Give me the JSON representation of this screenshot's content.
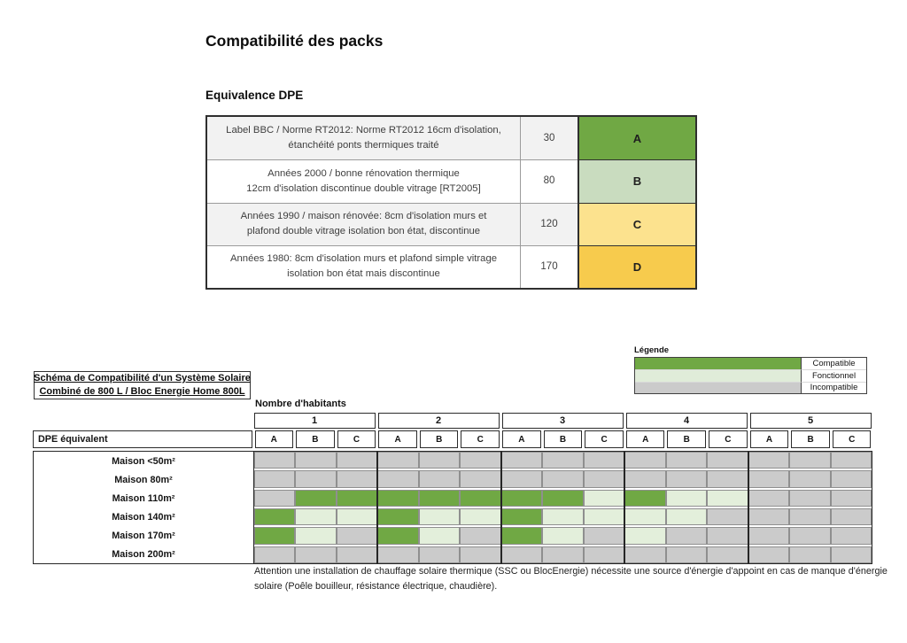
{
  "page": {
    "title": "Compatibilité des packs"
  },
  "equivalence": {
    "heading": "Equivalence DPE",
    "rows": [
      {
        "description_line1": "Label BBC / Norme RT2012: Norme RT2012 16cm d'isolation,",
        "description_line2": "étanchéité ponts thermiques traité",
        "value": "30",
        "grade": "A",
        "color": "#70A844"
      },
      {
        "description_line1": "Années 2000 / bonne rénovation thermique",
        "description_line2": "12cm d'isolation discontinue double vitrage [RT2005]",
        "value": "80",
        "grade": "B",
        "color": "#C9DCBF"
      },
      {
        "description_line1": "Années 1990 / maison rénovée: 8cm d'isolation murs et",
        "description_line2": "plafond double vitrage isolation bon état, discontinue",
        "value": "120",
        "grade": "C",
        "color": "#FCE28E"
      },
      {
        "description_line1": "Années 1980: 8cm d'isolation murs et plafond simple vitrage",
        "description_line2": "isolation bon état mais discontinue",
        "value": "170",
        "grade": "D",
        "color": "#F7CB4D"
      }
    ]
  },
  "legend": {
    "title": "Légende",
    "items": [
      {
        "label": "Compatible",
        "color": "#70A844"
      },
      {
        "label": "Fonctionnel",
        "color": "#E0ECD9"
      },
      {
        "label": "Incompatible",
        "color": "#CBCBCB"
      }
    ]
  },
  "schema": {
    "title_line1": "Schéma de Compatibilité d'un Système Solaire",
    "title_line2": "Combiné de 800 L / Bloc Energie Home 800L"
  },
  "matrix": {
    "habitants_label": "Nombre d'habitants",
    "dpe_label": "DPE équivalent",
    "groups": [
      "1",
      "2",
      "3",
      "4",
      "5"
    ],
    "subcolumns": [
      "A",
      "B",
      "C"
    ],
    "cell_colors": {
      "G": "#70A844",
      "F": "#E3EFDB",
      "I": "#CBCBCB"
    },
    "cell_meanings": {
      "G": "Compatible",
      "F": "Fonctionnel",
      "I": "Incompatible"
    },
    "rows": [
      {
        "label": "Maison <50m²",
        "cells": [
          "I",
          "I",
          "I",
          "I",
          "I",
          "I",
          "I",
          "I",
          "I",
          "I",
          "I",
          "I",
          "I",
          "I",
          "I"
        ]
      },
      {
        "label": "Maison 80m²",
        "cells": [
          "I",
          "I",
          "I",
          "I",
          "I",
          "I",
          "I",
          "I",
          "I",
          "I",
          "I",
          "I",
          "I",
          "I",
          "I"
        ]
      },
      {
        "label": "Maison 110m²",
        "cells": [
          "I",
          "G",
          "G",
          "G",
          "G",
          "G",
          "G",
          "G",
          "F",
          "G",
          "F",
          "F",
          "I",
          "I",
          "I"
        ]
      },
      {
        "label": "Maison 140m²",
        "cells": [
          "G",
          "F",
          "F",
          "G",
          "F",
          "F",
          "G",
          "F",
          "F",
          "F",
          "F",
          "I",
          "I",
          "I",
          "I"
        ]
      },
      {
        "label": "Maison 170m²",
        "cells": [
          "G",
          "F",
          "I",
          "G",
          "F",
          "I",
          "G",
          "F",
          "I",
          "F",
          "I",
          "I",
          "I",
          "I",
          "I"
        ]
      },
      {
        "label": "Maison 200m²",
        "cells": [
          "I",
          "I",
          "I",
          "I",
          "I",
          "I",
          "I",
          "I",
          "I",
          "I",
          "I",
          "I",
          "I",
          "I",
          "I"
        ]
      }
    ]
  },
  "footer": {
    "note_line1": "Attention une installation de chauffage solaire thermique (SSC ou BlocEnergie) nécessite une source d'énergie d'appoint en cas de manque d'énergie",
    "note_line2": "solaire (Poêle bouilleur, résistance électrique, chaudière)."
  }
}
